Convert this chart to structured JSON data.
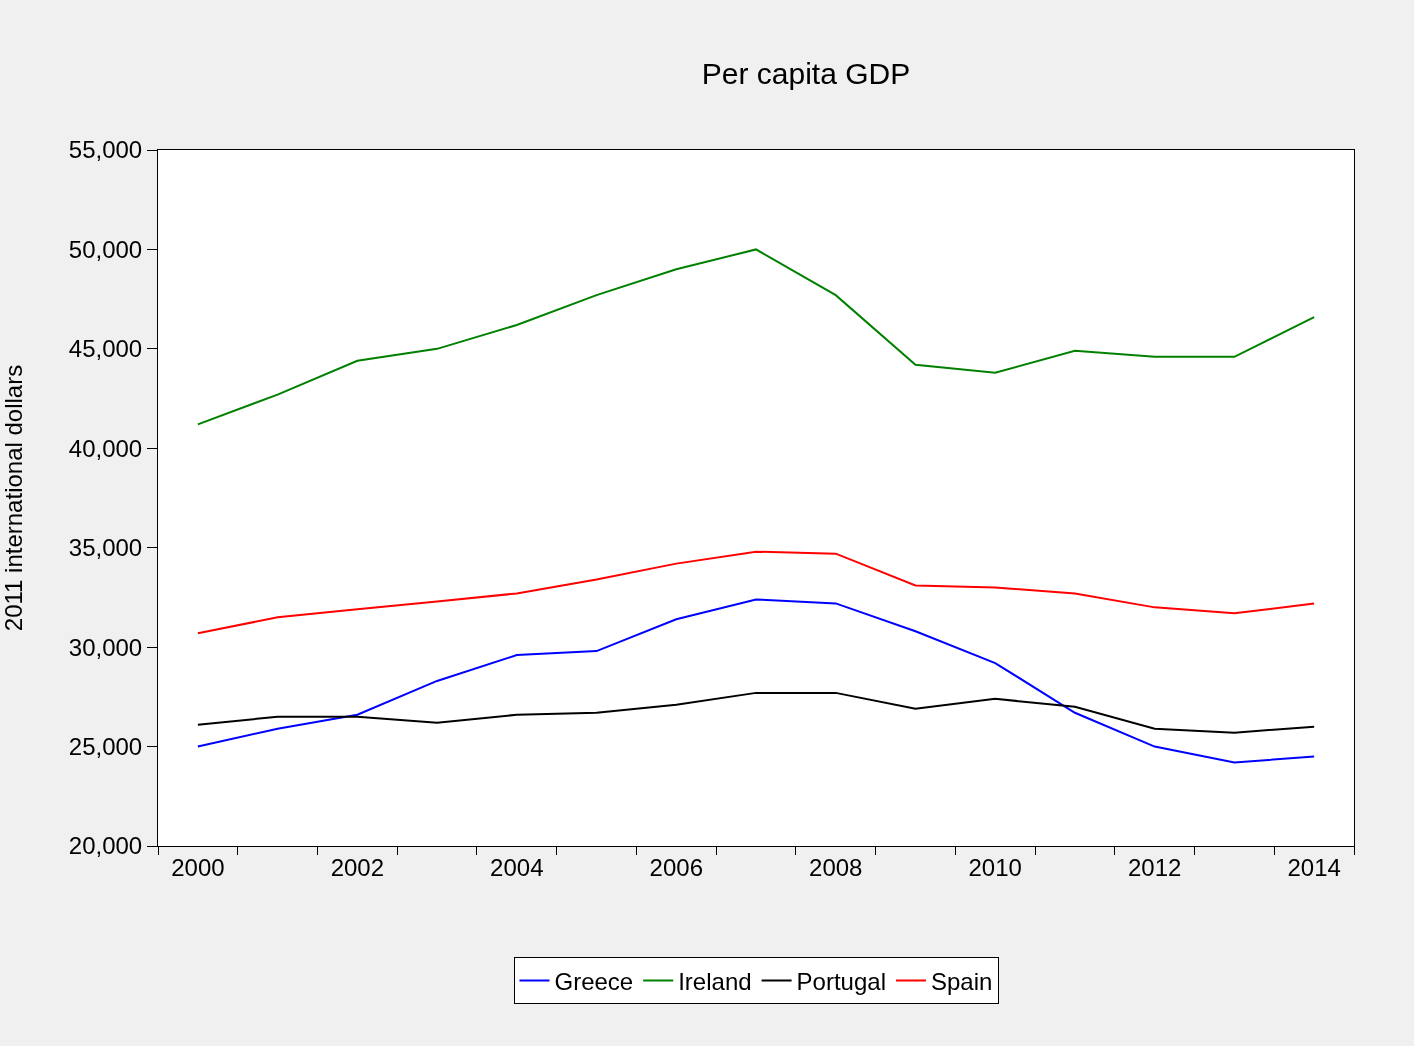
{
  "chart_data": {
    "type": "line",
    "title": "Per capita GDP",
    "ylabel": "2011 international dollars",
    "categories": [
      "2000",
      null,
      "2002",
      null,
      "2004",
      null,
      "2006",
      null,
      "2008",
      null,
      "2010",
      null,
      "2012",
      null,
      "2014"
    ],
    "series": [
      {
        "name": "Greece",
        "color": "#0000ff",
        "values": [
          25000,
          25900,
          26600,
          28300,
          29600,
          29800,
          31400,
          32400,
          32200,
          30800,
          29200,
          26700,
          25000,
          24200,
          24500
        ]
      },
      {
        "name": "Ireland",
        "color": "#008000",
        "values": [
          41200,
          42700,
          44400,
          45000,
          46200,
          47700,
          49000,
          50000,
          47700,
          44200,
          43800,
          44900,
          44600,
          44600,
          46600
        ]
      },
      {
        "name": "Portugal",
        "color": "#000000",
        "values": [
          26100,
          26500,
          26500,
          26200,
          26600,
          26700,
          27100,
          27700,
          27700,
          26900,
          27400,
          27000,
          25900,
          25700,
          26000
        ]
      },
      {
        "name": "Spain",
        "color": "#ff0000",
        "values": [
          30700,
          31500,
          31900,
          32300,
          32700,
          33400,
          34200,
          34800,
          34700,
          33100,
          33000,
          32700,
          32000,
          31700,
          32200
        ]
      }
    ],
    "ylim": [
      20000,
      55000
    ],
    "yticks": [
      {
        "value": 20000,
        "label": "20,000"
      },
      {
        "value": 25000,
        "label": "25,000"
      },
      {
        "value": 30000,
        "label": "30,000"
      },
      {
        "value": 35000,
        "label": "35,000"
      },
      {
        "value": 40000,
        "label": "40,000"
      },
      {
        "value": 45000,
        "label": "45,000"
      },
      {
        "value": 50000,
        "label": "50,000"
      },
      {
        "value": 55000,
        "label": "55,000"
      }
    ],
    "grid": false,
    "legend": "bottom",
    "marker": "none",
    "line_style": "solid"
  }
}
